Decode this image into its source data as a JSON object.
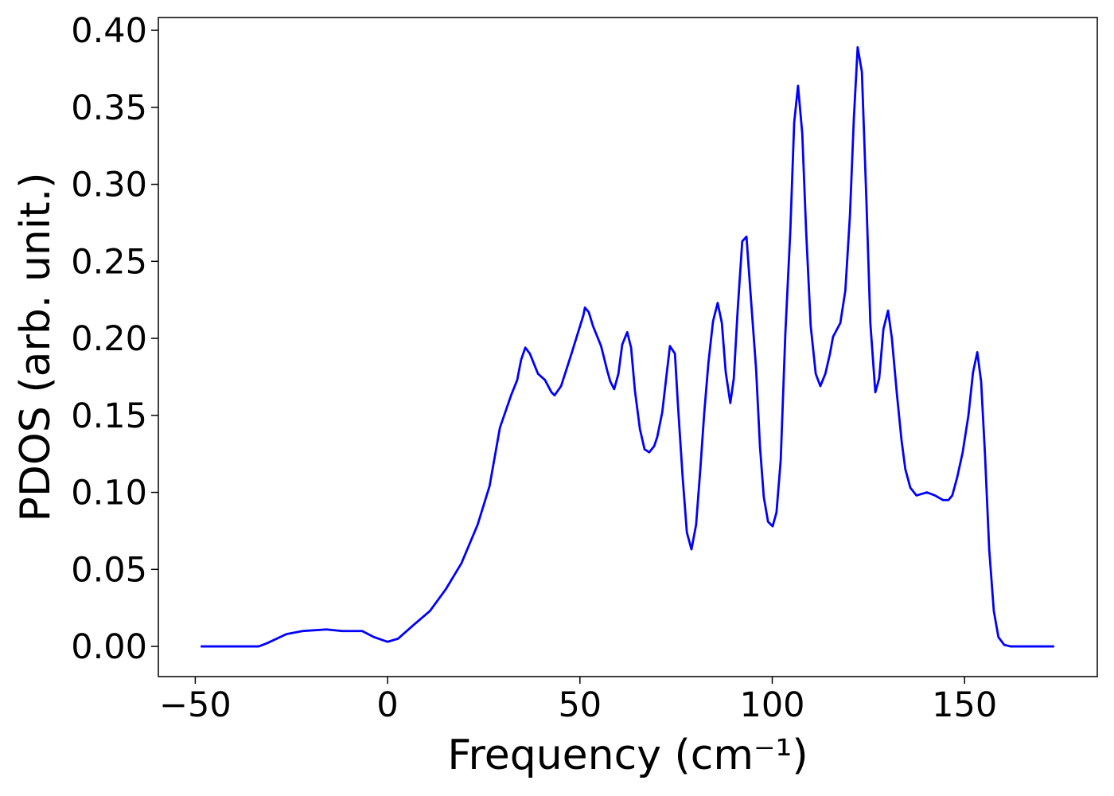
{
  "chart_data": {
    "type": "line",
    "xlabel": "Frequency (cm⁻¹)",
    "ylabel": "PDOS (arb. unit.)",
    "xlim": [
      -59.6,
      184.5
    ],
    "ylim": [
      -0.0196,
      0.4083
    ],
    "xticks": [
      {
        "value": -50,
        "label": "−50"
      },
      0,
      50,
      100,
      150
    ],
    "yticks": [
      {
        "value": 0,
        "label": "0.00"
      },
      {
        "value": 0.05,
        "label": "0.05"
      },
      {
        "value": 0.1,
        "label": "0.10"
      },
      {
        "value": 0.15,
        "label": "0.15"
      },
      {
        "value": 0.2,
        "label": "0.20"
      },
      {
        "value": 0.25,
        "label": "0.25"
      },
      {
        "value": 0.3,
        "label": "0.30"
      },
      {
        "value": 0.35,
        "label": "0.35"
      },
      {
        "value": 0.4,
        "label": "0.40"
      }
    ],
    "grid": false,
    "series": [
      {
        "color": "#0000ff",
        "x": [
          -48.6,
          -33.5,
          -31.4,
          -26.3,
          -22.1,
          -15.9,
          -11.8,
          -6.6,
          -3.5,
          0,
          2.7,
          6.8,
          11.0,
          15.1,
          19.2,
          23.4,
          26.5,
          29.2,
          32.1,
          33.7,
          34.7,
          35.8,
          37.0,
          39.1,
          40.9,
          42.6,
          43.4,
          45.1,
          47.8,
          50.9,
          51.3,
          52.3,
          53.4,
          55.5,
          57.1,
          57.9,
          58.9,
          60.0,
          61.0,
          62.3,
          63.3,
          64.3,
          65.6,
          66.8,
          68.0,
          69.3,
          70.1,
          71.4,
          72.6,
          73.4,
          74.7,
          75.5,
          76.7,
          77.8,
          79.0,
          80.2,
          81.3,
          82.3,
          83.4,
          84.6,
          85.8,
          86.9,
          87.9,
          89.1,
          90.0,
          91.0,
          92.2,
          93.3,
          94.3,
          95.8,
          96.8,
          97.8,
          98.9,
          100.1,
          101.1,
          102.2,
          103.4,
          104.7,
          105.7,
          106.7,
          107.8,
          108.8,
          110.0,
          111.3,
          112.5,
          113.8,
          115.0,
          115.8,
          117.7,
          119.0,
          120.2,
          121.2,
          122.2,
          123.3,
          124.5,
          125.5,
          126.8,
          127.8,
          128.9,
          130.1,
          131.1,
          132.4,
          133.6,
          134.6,
          135.9,
          137.5,
          140.2,
          142.3,
          144.4,
          145.8,
          146.8,
          148.1,
          149.5,
          151.0,
          152.2,
          153.3,
          154.3,
          155.3,
          156.4,
          157.6,
          158.8,
          160.3,
          161.9,
          173.3
        ],
        "values": [
          0,
          0,
          0.002,
          0.008,
          0.01,
          0.011,
          0.01,
          0.01,
          0.006,
          0.003,
          0.005,
          0.014,
          0.023,
          0.037,
          0.054,
          0.079,
          0.104,
          0.142,
          0.163,
          0.173,
          0.186,
          0.194,
          0.19,
          0.177,
          0.173,
          0.165,
          0.163,
          0.169,
          0.19,
          0.215,
          0.22,
          0.217,
          0.208,
          0.195,
          0.179,
          0.172,
          0.167,
          0.177,
          0.196,
          0.204,
          0.194,
          0.166,
          0.141,
          0.128,
          0.126,
          0.13,
          0.136,
          0.152,
          0.178,
          0.195,
          0.19,
          0.156,
          0.11,
          0.074,
          0.063,
          0.079,
          0.115,
          0.151,
          0.184,
          0.211,
          0.223,
          0.21,
          0.178,
          0.158,
          0.174,
          0.218,
          0.263,
          0.266,
          0.231,
          0.18,
          0.13,
          0.097,
          0.081,
          0.078,
          0.087,
          0.121,
          0.203,
          0.27,
          0.34,
          0.364,
          0.333,
          0.27,
          0.208,
          0.177,
          0.169,
          0.177,
          0.19,
          0.201,
          0.21,
          0.231,
          0.28,
          0.342,
          0.389,
          0.373,
          0.288,
          0.21,
          0.165,
          0.174,
          0.206,
          0.218,
          0.2,
          0.164,
          0.134,
          0.115,
          0.103,
          0.098,
          0.1,
          0.098,
          0.095,
          0.095,
          0.098,
          0.11,
          0.126,
          0.15,
          0.178,
          0.191,
          0.172,
          0.125,
          0.063,
          0.023,
          0.006,
          0.001,
          0,
          0
        ]
      }
    ]
  }
}
